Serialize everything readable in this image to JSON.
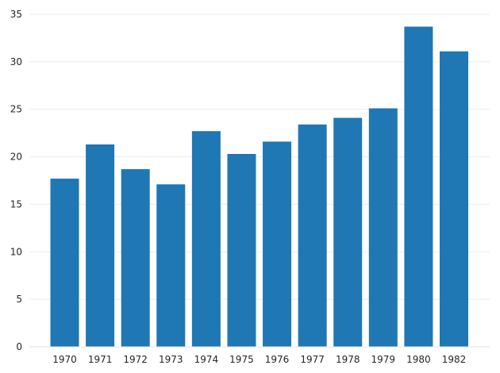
{
  "chart_data": {
    "type": "bar",
    "title": "",
    "xlabel": "",
    "ylabel": "",
    "categories": [
      "1970",
      "1971",
      "1972",
      "1973",
      "1974",
      "1975",
      "1976",
      "1977",
      "1978",
      "1979",
      "1980",
      "1982"
    ],
    "values": [
      17.7,
      21.3,
      18.7,
      17.1,
      22.7,
      20.3,
      21.6,
      23.4,
      24.1,
      25.1,
      33.7,
      31.1
    ],
    "ylim": [
      0,
      35
    ],
    "yticks": [
      0,
      5,
      10,
      15,
      20,
      25,
      30,
      35
    ],
    "grid": true,
    "legend": null,
    "bar_color": "#1f77b4",
    "grid_color": "#ebebeb"
  }
}
